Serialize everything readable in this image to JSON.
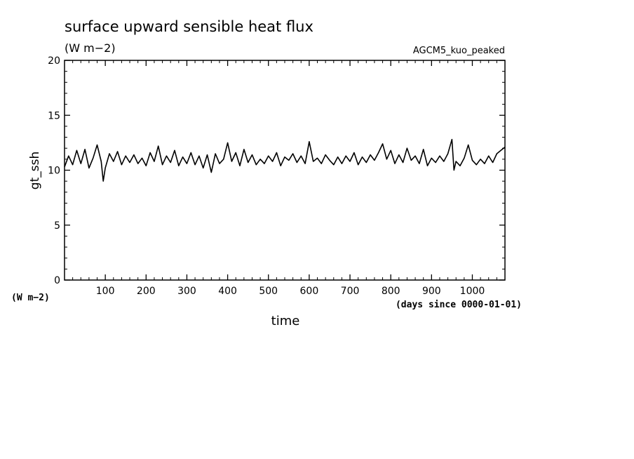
{
  "chart_data": {
    "type": "line",
    "title": "surface upward sensible heat flux",
    "subtitle": "(W m−2)",
    "run_label": "AGCM5_kuo_peaked",
    "xlabel": "time",
    "x_units": "(days since 0000-01-01)",
    "ylabel": "gt_ssh",
    "y_units": "(W m−2)",
    "xlim": [
      0,
      1080
    ],
    "ylim": [
      0,
      20
    ],
    "x_ticks": [
      100,
      200,
      300,
      400,
      500,
      600,
      700,
      800,
      900,
      1000
    ],
    "y_ticks": [
      0,
      5,
      10,
      15,
      20
    ],
    "grid": false,
    "series": [
      {
        "name": "",
        "color": "#000000",
        "x": [
          0,
          10,
          20,
          30,
          40,
          50,
          60,
          70,
          80,
          90,
          95,
          100,
          110,
          120,
          130,
          140,
          150,
          160,
          170,
          180,
          190,
          200,
          210,
          220,
          230,
          240,
          250,
          260,
          270,
          280,
          290,
          300,
          310,
          320,
          330,
          340,
          350,
          360,
          370,
          380,
          390,
          400,
          410,
          420,
          430,
          440,
          450,
          460,
          470,
          480,
          490,
          500,
          510,
          520,
          530,
          540,
          550,
          560,
          570,
          580,
          590,
          600,
          610,
          620,
          630,
          640,
          650,
          660,
          670,
          680,
          690,
          700,
          710,
          720,
          730,
          740,
          750,
          760,
          770,
          780,
          790,
          800,
          810,
          820,
          830,
          840,
          850,
          860,
          870,
          880,
          890,
          900,
          910,
          920,
          930,
          940,
          950,
          955,
          960,
          970,
          980,
          990,
          1000,
          1010,
          1020,
          1030,
          1040,
          1050,
          1060,
          1070,
          1080
        ],
        "y": [
          10.3,
          11.3,
          10.5,
          11.8,
          10.6,
          11.9,
          10.2,
          11.1,
          12.3,
          10.8,
          9.0,
          10.2,
          11.5,
          10.8,
          11.7,
          10.5,
          11.3,
          10.7,
          11.4,
          10.6,
          11.1,
          10.4,
          11.6,
          10.8,
          12.2,
          10.5,
          11.3,
          10.7,
          11.8,
          10.4,
          11.2,
          10.6,
          11.6,
          10.5,
          11.3,
          10.2,
          11.4,
          9.8,
          11.5,
          10.6,
          11.0,
          12.5,
          10.8,
          11.6,
          10.4,
          11.9,
          10.7,
          11.4,
          10.5,
          11.0,
          10.6,
          11.3,
          10.8,
          11.6,
          10.4,
          11.2,
          10.9,
          11.5,
          10.7,
          11.3,
          10.6,
          12.6,
          10.8,
          11.1,
          10.6,
          11.4,
          10.9,
          10.5,
          11.2,
          10.6,
          11.3,
          10.8,
          11.6,
          10.5,
          11.2,
          10.7,
          11.4,
          10.9,
          11.6,
          12.4,
          11.0,
          11.8,
          10.6,
          11.4,
          10.7,
          12.0,
          10.9,
          11.3,
          10.6,
          11.9,
          10.4,
          11.1,
          10.7,
          11.3,
          10.8,
          11.5,
          12.8,
          10.0,
          10.8,
          10.4,
          11.1,
          12.3,
          10.9,
          10.5,
          11.0,
          10.6,
          11.3,
          10.7,
          11.5,
          11.8,
          12.1
        ]
      }
    ]
  }
}
